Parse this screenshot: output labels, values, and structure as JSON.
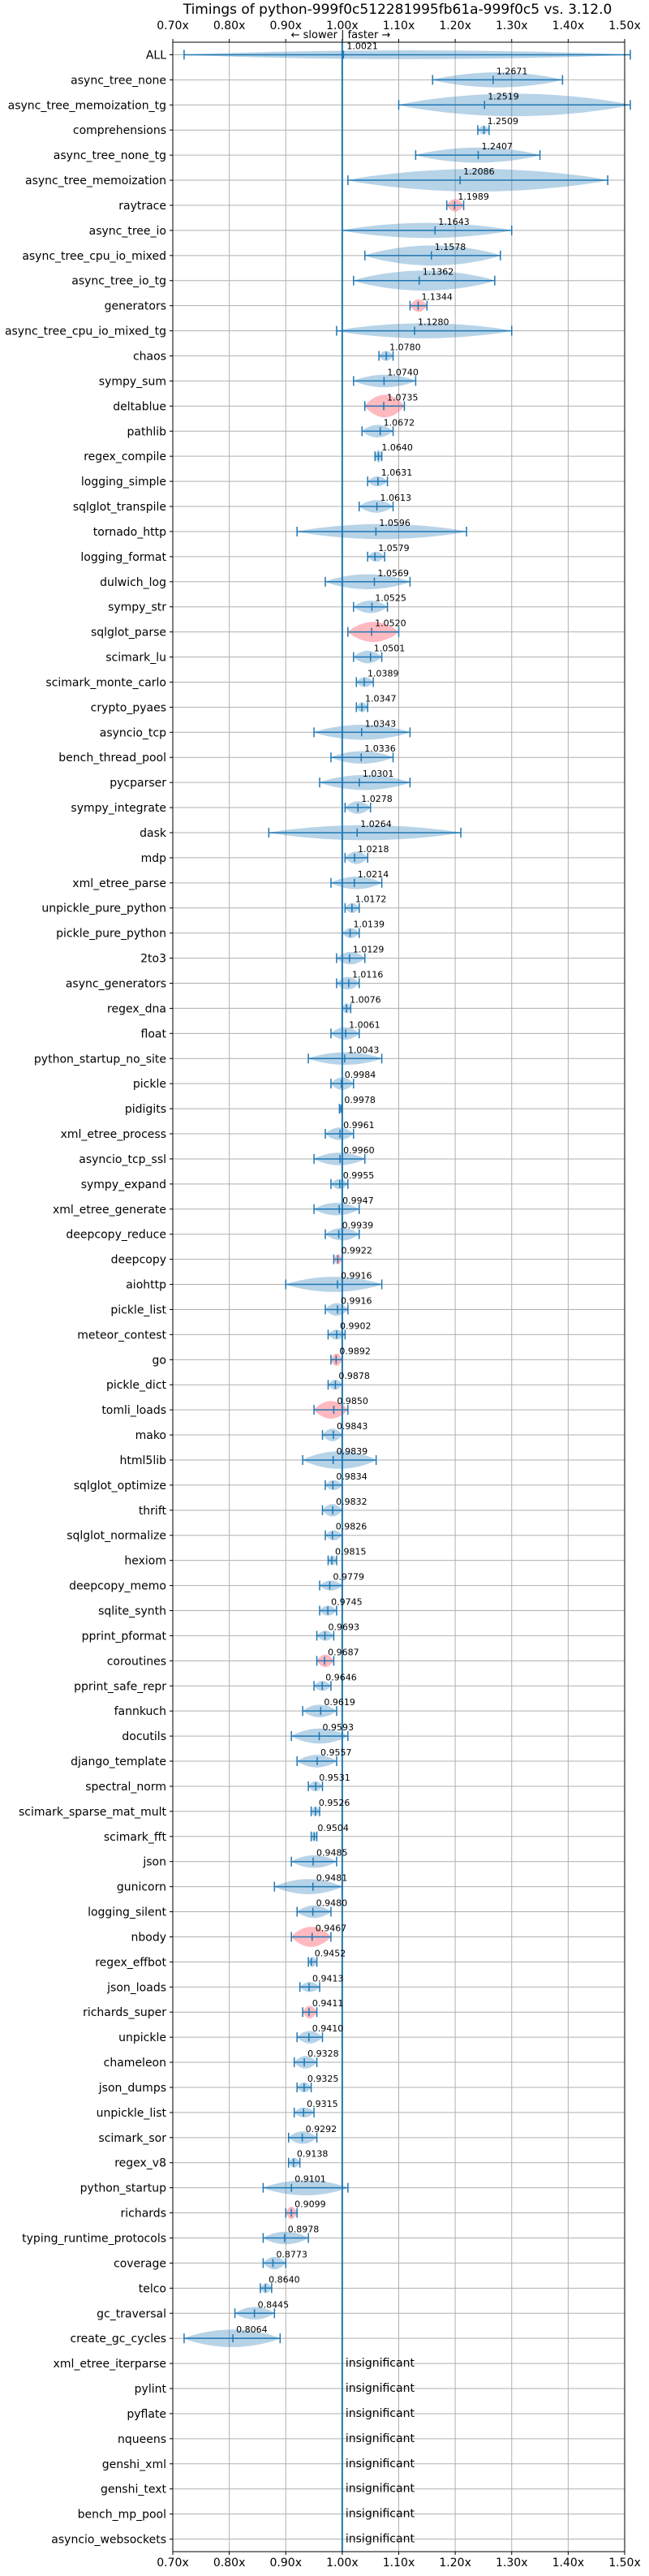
{
  "chart_data": {
    "type": "violin",
    "title": "Timings of python-999f0c512281995fb61a-999f0c5 vs. 3.12.0",
    "direction_hint": "← slower | faster →",
    "xlim": [
      0.7,
      1.5
    ],
    "xticks": [
      0.7,
      0.8,
      0.9,
      1.0,
      1.1,
      1.2,
      1.3,
      1.4,
      1.5
    ],
    "xtick_labels": [
      "0.70x",
      "0.80x",
      "0.90x",
      "1.00x",
      "1.10x",
      "1.20x",
      "1.30x",
      "1.40x",
      "1.50x"
    ],
    "reference": 1.0,
    "grid": true,
    "insignificant_label": "insignificant",
    "colors": {
      "normal": "#1f77b4",
      "highlight": "#ff7f8a",
      "reference": "#1f77b4"
    },
    "benchmarks": [
      {
        "name": "ALL",
        "label": "1.0021",
        "mean": 1.0021,
        "min": 0.72,
        "max": 1.51,
        "width": 0.35,
        "highlight": false
      },
      {
        "name": "async_tree_none",
        "label": "1.2671",
        "mean": 1.2671,
        "min": 1.16,
        "max": 1.39,
        "width": 0.6,
        "highlight": false
      },
      {
        "name": "async_tree_memoization_tg",
        "label": "1.2519",
        "mean": 1.2519,
        "min": 1.1,
        "max": 1.51,
        "width": 0.9,
        "highlight": false
      },
      {
        "name": "comprehensions",
        "label": "1.2509",
        "mean": 1.2509,
        "min": 1.24,
        "max": 1.26,
        "width": 0.35,
        "highlight": false
      },
      {
        "name": "async_tree_none_tg",
        "label": "1.2407",
        "mean": 1.2407,
        "min": 1.13,
        "max": 1.35,
        "width": 0.6,
        "highlight": false
      },
      {
        "name": "async_tree_memoization",
        "label": "1.2086",
        "mean": 1.2086,
        "min": 1.01,
        "max": 1.47,
        "width": 0.9,
        "highlight": false
      },
      {
        "name": "raytrace",
        "label": "1.1989",
        "mean": 1.1989,
        "min": 1.185,
        "max": 1.215,
        "width": 0.5,
        "highlight": true
      },
      {
        "name": "async_tree_io",
        "label": "1.1643",
        "mean": 1.1643,
        "min": 1.0,
        "max": 1.3,
        "width": 0.6,
        "highlight": false
      },
      {
        "name": "async_tree_cpu_io_mixed",
        "label": "1.1578",
        "mean": 1.1578,
        "min": 1.04,
        "max": 1.28,
        "width": 0.8,
        "highlight": false
      },
      {
        "name": "async_tree_io_tg",
        "label": "1.1362",
        "mean": 1.1362,
        "min": 1.02,
        "max": 1.27,
        "width": 0.8,
        "highlight": false
      },
      {
        "name": "generators",
        "label": "1.1344",
        "mean": 1.1344,
        "min": 1.12,
        "max": 1.15,
        "width": 0.5,
        "highlight": true
      },
      {
        "name": "async_tree_cpu_io_mixed_tg",
        "label": "1.1280",
        "mean": 1.128,
        "min": 0.99,
        "max": 1.3,
        "width": 0.6,
        "highlight": false
      },
      {
        "name": "chaos",
        "label": "1.0780",
        "mean": 1.078,
        "min": 1.065,
        "max": 1.09,
        "width": 0.4,
        "highlight": false
      },
      {
        "name": "sympy_sum",
        "label": "1.0740",
        "mean": 1.074,
        "min": 1.02,
        "max": 1.13,
        "width": 0.5,
        "highlight": false
      },
      {
        "name": "deltablue",
        "label": "1.0735",
        "mean": 1.0735,
        "min": 1.04,
        "max": 1.11,
        "width": 0.9,
        "highlight": true
      },
      {
        "name": "pathlib",
        "label": "1.0672",
        "mean": 1.0672,
        "min": 1.035,
        "max": 1.09,
        "width": 0.5,
        "highlight": false
      },
      {
        "name": "regex_compile",
        "label": "1.0640",
        "mean": 1.064,
        "min": 1.058,
        "max": 1.07,
        "width": 0.5,
        "highlight": false
      },
      {
        "name": "logging_simple",
        "label": "1.0631",
        "mean": 1.0631,
        "min": 1.045,
        "max": 1.08,
        "width": 0.4,
        "highlight": false
      },
      {
        "name": "sqlglot_transpile",
        "label": "1.0613",
        "mean": 1.0613,
        "min": 1.03,
        "max": 1.09,
        "width": 0.5,
        "highlight": false
      },
      {
        "name": "tornado_http",
        "label": "1.0596",
        "mean": 1.0596,
        "min": 0.92,
        "max": 1.22,
        "width": 0.6,
        "highlight": false
      },
      {
        "name": "logging_format",
        "label": "1.0579",
        "mean": 1.0579,
        "min": 1.045,
        "max": 1.075,
        "width": 0.4,
        "highlight": false
      },
      {
        "name": "dulwich_log",
        "label": "1.0569",
        "mean": 1.0569,
        "min": 0.97,
        "max": 1.12,
        "width": 0.6,
        "highlight": false
      },
      {
        "name": "sympy_str",
        "label": "1.0525",
        "mean": 1.0525,
        "min": 1.02,
        "max": 1.08,
        "width": 0.5,
        "highlight": false
      },
      {
        "name": "sqlglot_parse",
        "label": "1.0520",
        "mean": 1.052,
        "min": 1.01,
        "max": 1.1,
        "width": 0.8,
        "highlight": true
      },
      {
        "name": "scimark_lu",
        "label": "1.0501",
        "mean": 1.0501,
        "min": 1.02,
        "max": 1.07,
        "width": 0.5,
        "highlight": false
      },
      {
        "name": "scimark_monte_carlo",
        "label": "1.0389",
        "mean": 1.0389,
        "min": 1.025,
        "max": 1.055,
        "width": 0.4,
        "highlight": false
      },
      {
        "name": "crypto_pyaes",
        "label": "1.0347",
        "mean": 1.0347,
        "min": 1.025,
        "max": 1.045,
        "width": 0.4,
        "highlight": false
      },
      {
        "name": "asyncio_tcp",
        "label": "1.0343",
        "mean": 1.0343,
        "min": 0.95,
        "max": 1.12,
        "width": 0.6,
        "highlight": false
      },
      {
        "name": "bench_thread_pool",
        "label": "1.0336",
        "mean": 1.0336,
        "min": 0.98,
        "max": 1.09,
        "width": 0.5,
        "highlight": false
      },
      {
        "name": "pycparser",
        "label": "1.0301",
        "mean": 1.0301,
        "min": 0.96,
        "max": 1.12,
        "width": 0.6,
        "highlight": false
      },
      {
        "name": "sympy_integrate",
        "label": "1.0278",
        "mean": 1.0278,
        "min": 1.005,
        "max": 1.05,
        "width": 0.5,
        "highlight": false
      },
      {
        "name": "dask",
        "label": "1.0264",
        "mean": 1.0264,
        "min": 0.87,
        "max": 1.21,
        "width": 0.6,
        "highlight": false
      },
      {
        "name": "mdp",
        "label": "1.0218",
        "mean": 1.0218,
        "min": 1.005,
        "max": 1.045,
        "width": 0.5,
        "highlight": false
      },
      {
        "name": "xml_etree_parse",
        "label": "1.0214",
        "mean": 1.0214,
        "min": 0.98,
        "max": 1.07,
        "width": 0.5,
        "highlight": false
      },
      {
        "name": "unpickle_pure_python",
        "label": "1.0172",
        "mean": 1.0172,
        "min": 1.005,
        "max": 1.03,
        "width": 0.4,
        "highlight": false
      },
      {
        "name": "pickle_pure_python",
        "label": "1.0139",
        "mean": 1.0139,
        "min": 1.0,
        "max": 1.03,
        "width": 0.4,
        "highlight": false
      },
      {
        "name": "2to3",
        "label": "1.0129",
        "mean": 1.0129,
        "min": 0.99,
        "max": 1.04,
        "width": 0.5,
        "highlight": false
      },
      {
        "name": "async_generators",
        "label": "1.0116",
        "mean": 1.0116,
        "min": 0.99,
        "max": 1.03,
        "width": 0.5,
        "highlight": false
      },
      {
        "name": "regex_dna",
        "label": "1.0076",
        "mean": 1.0076,
        "min": 1.0,
        "max": 1.015,
        "width": 0.4,
        "highlight": false
      },
      {
        "name": "float",
        "label": "1.0061",
        "mean": 1.0061,
        "min": 0.98,
        "max": 1.03,
        "width": 0.5,
        "highlight": false
      },
      {
        "name": "python_startup_no_site",
        "label": "1.0043",
        "mean": 1.0043,
        "min": 0.94,
        "max": 1.07,
        "width": 0.5,
        "highlight": false
      },
      {
        "name": "pickle",
        "label": "0.9984",
        "mean": 0.9984,
        "min": 0.98,
        "max": 1.02,
        "width": 0.5,
        "highlight": false
      },
      {
        "name": "pidigits",
        "label": "0.9978",
        "mean": 0.9978,
        "min": 0.995,
        "max": 1.0,
        "width": 0.3,
        "highlight": false
      },
      {
        "name": "xml_etree_process",
        "label": "0.9961",
        "mean": 0.9961,
        "min": 0.97,
        "max": 1.02,
        "width": 0.5,
        "highlight": false
      },
      {
        "name": "asyncio_tcp_ssl",
        "label": "0.9960",
        "mean": 0.996,
        "min": 0.95,
        "max": 1.04,
        "width": 0.5,
        "highlight": false
      },
      {
        "name": "sympy_expand",
        "label": "0.9955",
        "mean": 0.9955,
        "min": 0.98,
        "max": 1.01,
        "width": 0.4,
        "highlight": false
      },
      {
        "name": "xml_etree_generate",
        "label": "0.9947",
        "mean": 0.9947,
        "min": 0.95,
        "max": 1.03,
        "width": 0.5,
        "highlight": false
      },
      {
        "name": "deepcopy_reduce",
        "label": "0.9939",
        "mean": 0.9939,
        "min": 0.97,
        "max": 1.03,
        "width": 0.5,
        "highlight": false
      },
      {
        "name": "deepcopy",
        "label": "0.9922",
        "mean": 0.9922,
        "min": 0.985,
        "max": 1.0,
        "width": 0.4,
        "highlight": true
      },
      {
        "name": "aiohttp",
        "label": "0.9916",
        "mean": 0.9916,
        "min": 0.9,
        "max": 1.07,
        "width": 0.6,
        "highlight": false
      },
      {
        "name": "pickle_list",
        "label": "0.9916",
        "mean": 0.9916,
        "min": 0.97,
        "max": 1.01,
        "width": 0.5,
        "highlight": false
      },
      {
        "name": "meteor_contest",
        "label": "0.9902",
        "mean": 0.9902,
        "min": 0.975,
        "max": 1.005,
        "width": 0.4,
        "highlight": false
      },
      {
        "name": "go",
        "label": "0.9892",
        "mean": 0.9892,
        "min": 0.98,
        "max": 1.0,
        "width": 0.5,
        "highlight": true
      },
      {
        "name": "pickle_dict",
        "label": "0.9878",
        "mean": 0.9878,
        "min": 0.975,
        "max": 1.0,
        "width": 0.4,
        "highlight": false
      },
      {
        "name": "tomli_loads",
        "label": "0.9850",
        "mean": 0.985,
        "min": 0.95,
        "max": 1.01,
        "width": 0.7,
        "highlight": true
      },
      {
        "name": "mako",
        "label": "0.9843",
        "mean": 0.9843,
        "min": 0.965,
        "max": 1.0,
        "width": 0.5,
        "highlight": false
      },
      {
        "name": "html5lib",
        "label": "0.9839",
        "mean": 0.9839,
        "min": 0.93,
        "max": 1.06,
        "width": 0.7,
        "highlight": false
      },
      {
        "name": "sqlglot_optimize",
        "label": "0.9834",
        "mean": 0.9834,
        "min": 0.97,
        "max": 1.0,
        "width": 0.4,
        "highlight": false
      },
      {
        "name": "thrift",
        "label": "0.9832",
        "mean": 0.9832,
        "min": 0.965,
        "max": 1.0,
        "width": 0.5,
        "highlight": false
      },
      {
        "name": "sqlglot_normalize",
        "label": "0.9826",
        "mean": 0.9826,
        "min": 0.97,
        "max": 1.0,
        "width": 0.4,
        "highlight": false
      },
      {
        "name": "hexiom",
        "label": "0.9815",
        "mean": 0.9815,
        "min": 0.975,
        "max": 0.99,
        "width": 0.4,
        "highlight": false
      },
      {
        "name": "deepcopy_memo",
        "label": "0.9779",
        "mean": 0.9779,
        "min": 0.96,
        "max": 1.0,
        "width": 0.4,
        "highlight": false
      },
      {
        "name": "sqlite_synth",
        "label": "0.9745",
        "mean": 0.9745,
        "min": 0.96,
        "max": 0.99,
        "width": 0.4,
        "highlight": false
      },
      {
        "name": "pprint_pformat",
        "label": "0.9693",
        "mean": 0.9693,
        "min": 0.955,
        "max": 0.985,
        "width": 0.4,
        "highlight": false
      },
      {
        "name": "coroutines",
        "label": "0.9687",
        "mean": 0.9687,
        "min": 0.955,
        "max": 0.985,
        "width": 0.5,
        "highlight": true
      },
      {
        "name": "pprint_safe_repr",
        "label": "0.9646",
        "mean": 0.9646,
        "min": 0.95,
        "max": 0.98,
        "width": 0.4,
        "highlight": false
      },
      {
        "name": "fannkuch",
        "label": "0.9619",
        "mean": 0.9619,
        "min": 0.93,
        "max": 0.99,
        "width": 0.5,
        "highlight": false
      },
      {
        "name": "docutils",
        "label": "0.9593",
        "mean": 0.9593,
        "min": 0.91,
        "max": 1.01,
        "width": 0.6,
        "highlight": false
      },
      {
        "name": "django_template",
        "label": "0.9557",
        "mean": 0.9557,
        "min": 0.92,
        "max": 0.99,
        "width": 0.5,
        "highlight": false
      },
      {
        "name": "spectral_norm",
        "label": "0.9531",
        "mean": 0.9531,
        "min": 0.94,
        "max": 0.965,
        "width": 0.4,
        "highlight": false
      },
      {
        "name": "scimark_sparse_mat_mult",
        "label": "0.9526",
        "mean": 0.9526,
        "min": 0.945,
        "max": 0.96,
        "width": 0.4,
        "highlight": false
      },
      {
        "name": "scimark_fft",
        "label": "0.9504",
        "mean": 0.9504,
        "min": 0.945,
        "max": 0.955,
        "width": 0.4,
        "highlight": false
      },
      {
        "name": "json",
        "label": "0.9485",
        "mean": 0.9485,
        "min": 0.91,
        "max": 0.99,
        "width": 0.5,
        "highlight": false
      },
      {
        "name": "gunicorn",
        "label": "0.9481",
        "mean": 0.9481,
        "min": 0.88,
        "max": 1.0,
        "width": 0.6,
        "highlight": false
      },
      {
        "name": "logging_silent",
        "label": "0.9480",
        "mean": 0.948,
        "min": 0.92,
        "max": 0.98,
        "width": 0.5,
        "highlight": false
      },
      {
        "name": "nbody",
        "label": "0.9467",
        "mean": 0.9467,
        "min": 0.91,
        "max": 0.98,
        "width": 0.8,
        "highlight": true
      },
      {
        "name": "regex_effbot",
        "label": "0.9452",
        "mean": 0.9452,
        "min": 0.94,
        "max": 0.955,
        "width": 0.4,
        "highlight": false
      },
      {
        "name": "json_loads",
        "label": "0.9413",
        "mean": 0.9413,
        "min": 0.925,
        "max": 0.96,
        "width": 0.4,
        "highlight": false
      },
      {
        "name": "richards_super",
        "label": "0.9411",
        "mean": 0.9411,
        "min": 0.93,
        "max": 0.955,
        "width": 0.5,
        "highlight": true
      },
      {
        "name": "unpickle",
        "label": "0.9410",
        "mean": 0.941,
        "min": 0.92,
        "max": 0.965,
        "width": 0.5,
        "highlight": false
      },
      {
        "name": "chameleon",
        "label": "0.9328",
        "mean": 0.9328,
        "min": 0.915,
        "max": 0.955,
        "width": 0.5,
        "highlight": false
      },
      {
        "name": "json_dumps",
        "label": "0.9325",
        "mean": 0.9325,
        "min": 0.92,
        "max": 0.945,
        "width": 0.4,
        "highlight": false
      },
      {
        "name": "unpickle_list",
        "label": "0.9315",
        "mean": 0.9315,
        "min": 0.915,
        "max": 0.95,
        "width": 0.4,
        "highlight": false
      },
      {
        "name": "scimark_sor",
        "label": "0.9292",
        "mean": 0.9292,
        "min": 0.905,
        "max": 0.955,
        "width": 0.5,
        "highlight": false
      },
      {
        "name": "regex_v8",
        "label": "0.9138",
        "mean": 0.9138,
        "min": 0.905,
        "max": 0.925,
        "width": 0.4,
        "highlight": false
      },
      {
        "name": "python_startup",
        "label": "0.9101",
        "mean": 0.9101,
        "min": 0.86,
        "max": 1.01,
        "width": 0.6,
        "highlight": false
      },
      {
        "name": "richards",
        "label": "0.9099",
        "mean": 0.9099,
        "min": 0.9,
        "max": 0.92,
        "width": 0.5,
        "highlight": true
      },
      {
        "name": "typing_runtime_protocols",
        "label": "0.8978",
        "mean": 0.8978,
        "min": 0.86,
        "max": 0.94,
        "width": 0.5,
        "highlight": false
      },
      {
        "name": "coverage",
        "label": "0.8773",
        "mean": 0.8773,
        "min": 0.86,
        "max": 0.9,
        "width": 0.5,
        "highlight": false
      },
      {
        "name": "telco",
        "label": "0.8640",
        "mean": 0.864,
        "min": 0.855,
        "max": 0.875,
        "width": 0.4,
        "highlight": false
      },
      {
        "name": "gc_traversal",
        "label": "0.8445",
        "mean": 0.8445,
        "min": 0.81,
        "max": 0.88,
        "width": 0.5,
        "highlight": false
      },
      {
        "name": "create_gc_cycles",
        "label": "0.8064",
        "mean": 0.8064,
        "min": 0.72,
        "max": 0.89,
        "width": 0.7,
        "highlight": false
      },
      {
        "name": "xml_etree_iterparse",
        "insignificant": true
      },
      {
        "name": "pylint",
        "insignificant": true
      },
      {
        "name": "pyflate",
        "insignificant": true
      },
      {
        "name": "nqueens",
        "insignificant": true
      },
      {
        "name": "genshi_xml",
        "insignificant": true
      },
      {
        "name": "genshi_text",
        "insignificant": true
      },
      {
        "name": "bench_mp_pool",
        "insignificant": true
      },
      {
        "name": "asyncio_websockets",
        "insignificant": true
      }
    ]
  }
}
